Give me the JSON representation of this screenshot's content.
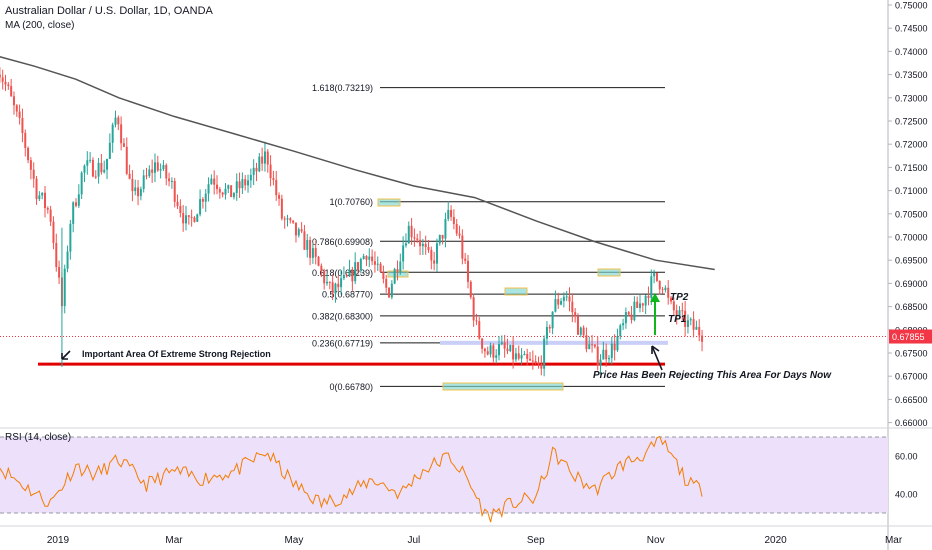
{
  "header": {
    "symbol_line": "Australian Dollar / U.S. Dollar, 1D, OANDA",
    "ma_label": "MA (200, close)",
    "rsi_label": "RSI (14, close)"
  },
  "colors": {
    "up": "#26a69a",
    "down": "#ef5350",
    "ma": "#555555",
    "fib": "#1a1a1a",
    "support": "#e00000",
    "rsi": "#f57c00",
    "rsi_band": "#ece0fb",
    "highlight": "#7fd6d0",
    "current": "#f23645",
    "tp_arrow": "#11b51c"
  },
  "chart_data": [
    {
      "type": "candlestick",
      "title": "Australian Dollar / U.S. Dollar, 1D, OANDA",
      "y_range": [
        0.66,
        0.75
      ],
      "y_ticks": [
        "0.75000",
        "0.74500",
        "0.74000",
        "0.73500",
        "0.73000",
        "0.72500",
        "0.72000",
        "0.71500",
        "0.71000",
        "0.70500",
        "0.70000",
        "0.69500",
        "0.69000",
        "0.68500",
        "0.68000",
        "0.67500",
        "0.67000",
        "0.66500",
        "0.66000"
      ],
      "x_ticks": [
        "2019",
        "Mar",
        "May",
        "Jul",
        "Sep",
        "Nov",
        "2020",
        "Mar"
      ],
      "current_price_label": "0.67855",
      "price_path": [
        [
          "2018-12-01",
          0.737
        ],
        [
          "2018-12-07",
          0.731
        ],
        [
          "2018-12-14",
          0.722
        ],
        [
          "2018-12-21",
          0.71
        ],
        [
          "2018-12-28",
          0.705
        ],
        [
          "2019-01-03",
          0.685
        ],
        [
          "2019-01-07",
          0.703
        ],
        [
          "2019-01-14",
          0.715
        ],
        [
          "2019-01-25",
          0.715
        ],
        [
          "2019-01-31",
          0.727
        ],
        [
          "2019-02-08",
          0.708
        ],
        [
          "2019-02-20",
          0.716
        ],
        [
          "2019-02-28",
          0.711
        ],
        [
          "2019-03-08",
          0.702
        ],
        [
          "2019-03-20",
          0.713
        ],
        [
          "2019-03-29",
          0.709
        ],
        [
          "2019-04-10",
          0.713
        ],
        [
          "2019-04-17",
          0.718
        ],
        [
          "2019-04-25",
          0.704
        ],
        [
          "2019-05-08",
          0.698
        ],
        [
          "2019-05-20",
          0.688
        ],
        [
          "2019-05-29",
          0.691
        ],
        [
          "2019-06-07",
          0.697
        ],
        [
          "2019-06-18",
          0.688
        ],
        [
          "2019-06-28",
          0.702
        ],
        [
          "2019-07-03",
          0.7
        ],
        [
          "2019-07-10",
          0.694
        ],
        [
          "2019-07-19",
          0.705
        ],
        [
          "2019-07-24",
          0.7
        ],
        [
          "2019-08-02",
          0.68
        ],
        [
          "2019-08-07",
          0.675
        ],
        [
          "2019-08-14",
          0.676
        ],
        [
          "2019-08-26",
          0.673
        ],
        [
          "2019-09-03",
          0.672
        ],
        [
          "2019-09-10",
          0.685
        ],
        [
          "2019-09-16",
          0.688
        ],
        [
          "2019-09-24",
          0.679
        ],
        [
          "2019-10-02",
          0.674
        ],
        [
          "2019-10-10",
          0.676
        ],
        [
          "2019-10-17",
          0.682
        ],
        [
          "2019-10-25",
          0.686
        ],
        [
          "2019-10-31",
          0.691
        ],
        [
          "2019-11-05",
          0.69
        ],
        [
          "2019-11-08",
          0.685
        ],
        [
          "2019-11-15",
          0.682
        ],
        [
          "2019-11-21",
          0.68
        ],
        [
          "2019-11-26",
          0.679
        ]
      ],
      "ma_name": "MA (200, close)",
      "ma_path": [
        [
          "2018-12-01",
          0.739
        ],
        [
          "2018-12-20",
          0.7368
        ],
        [
          "2019-01-10",
          0.734
        ],
        [
          "2019-02-01",
          0.73
        ],
        [
          "2019-03-01",
          0.726
        ],
        [
          "2019-04-01",
          0.7222
        ],
        [
          "2019-05-01",
          0.7185
        ],
        [
          "2019-06-01",
          0.7145
        ],
        [
          "2019-07-01",
          0.711
        ],
        [
          "2019-08-01",
          0.7085
        ],
        [
          "2019-09-01",
          0.7035
        ],
        [
          "2019-10-01",
          0.699
        ],
        [
          "2019-11-01",
          0.695
        ],
        [
          "2019-12-01",
          0.693
        ]
      ],
      "fib_levels": [
        {
          "label": "1.618(0.73219)",
          "value": 0.73219
        },
        {
          "label": "1(0.70760)",
          "value": 0.7076
        },
        {
          "label": "0.786(0.69908)",
          "value": 0.69908
        },
        {
          "label": "0.618(0.69239)",
          "value": 0.69239
        },
        {
          "label": "0.5(0.68770)",
          "value": 0.6877
        },
        {
          "label": "0.382(0.68300)",
          "value": 0.683
        },
        {
          "label": "0.236(0.67719)",
          "value": 0.67719
        },
        {
          "label": "0(0.66780)",
          "value": 0.6678
        }
      ],
      "support_level": 0.6726,
      "annotations": {
        "support_note": "Important Area Of Extreme Strong Rejection",
        "rejection_note": "Price Has Been Rejecting This Area For Days Now",
        "tp1": "TP1",
        "tp2": "TP2"
      }
    },
    {
      "type": "line",
      "title": "RSI (14, close)",
      "y_ticks": [
        "60.00",
        "40.00"
      ],
      "band": [
        30,
        70
      ],
      "series": [
        {
          "name": "RSI (14, close)",
          "path": [
            [
              "2018-12-01",
              55
            ],
            [
              "2018-12-14",
              45
            ],
            [
              "2018-12-28",
              35
            ],
            [
              "2019-01-10",
              55
            ],
            [
              "2019-01-20",
              50
            ],
            [
              "2019-02-01",
              58
            ],
            [
              "2019-02-15",
              45
            ],
            [
              "2019-03-01",
              52
            ],
            [
              "2019-03-15",
              48
            ],
            [
              "2019-04-01",
              52
            ],
            [
              "2019-04-17",
              62
            ],
            [
              "2019-05-01",
              45
            ],
            [
              "2019-05-15",
              35
            ],
            [
              "2019-05-29",
              40
            ],
            [
              "2019-06-10",
              48
            ],
            [
              "2019-06-24",
              40
            ],
            [
              "2019-07-05",
              52
            ],
            [
              "2019-07-19",
              60
            ],
            [
              "2019-07-28",
              48
            ],
            [
              "2019-08-07",
              28
            ],
            [
              "2019-08-20",
              35
            ],
            [
              "2019-09-01",
              38
            ],
            [
              "2019-09-10",
              62
            ],
            [
              "2019-09-20",
              50
            ],
            [
              "2019-10-01",
              42
            ],
            [
              "2019-10-14",
              55
            ],
            [
              "2019-10-28",
              62
            ],
            [
              "2019-11-04",
              68
            ],
            [
              "2019-11-12",
              55
            ],
            [
              "2019-11-18",
              45
            ],
            [
              "2019-11-26",
              42
            ]
          ]
        }
      ]
    }
  ]
}
